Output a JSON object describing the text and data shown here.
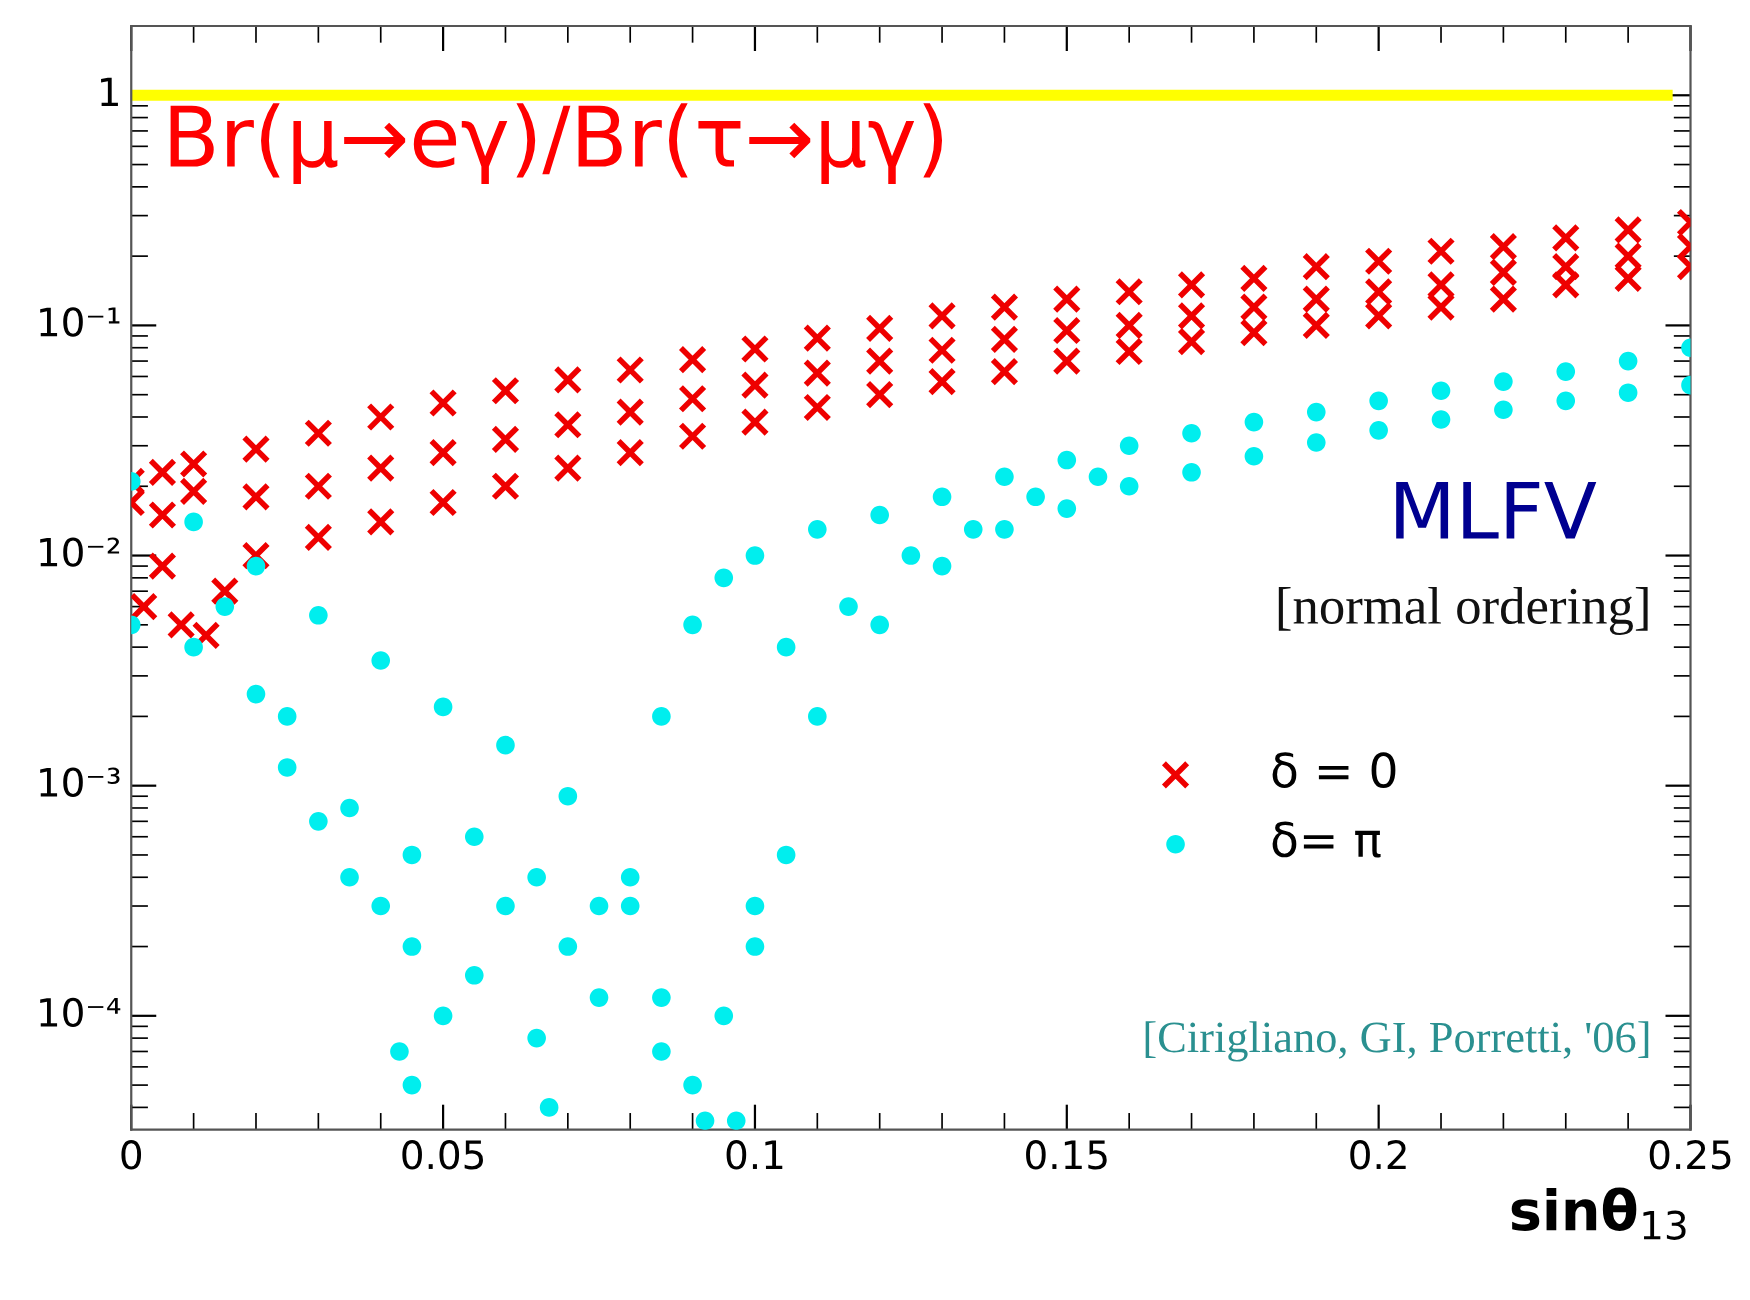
{
  "chart_data": {
    "type": "scatter",
    "xlabel": "sinθ$_{13}$",
    "xlim": [
      0,
      0.25
    ],
    "xticks": [
      0,
      0.05,
      0.1,
      0.15,
      0.2,
      0.25
    ],
    "ylim": [
      3.2e-05,
      2
    ],
    "log": "y",
    "yticks": [
      1,
      {
        "value": 0.1,
        "label": "10⁻¹"
      },
      {
        "value": 0.01,
        "label": "10⁻²"
      },
      {
        "value": 0.001,
        "label": "10⁻³"
      },
      {
        "value": 0.0001,
        "label": "10⁻⁴"
      }
    ],
    "grid": false,
    "legend": "bottom right",
    "ref_lines": [
      {
        "axis": "y",
        "value": 1,
        "color": "#ffff00"
      }
    ],
    "annotations": [
      "Br(μ→eγ)/Br(τ→μγ)",
      "MLFV",
      "[normal ordering]",
      "[Cirigliano, GI, Porretti, '06]"
    ],
    "series": [
      {
        "name": "δ = 0",
        "color": "#ee0000",
        "marker": "cross",
        "x": [
          0,
          0.005,
          0.01,
          0.02,
          0.03,
          0.04,
          0.05,
          0.06,
          0.07,
          0.08,
          0.09,
          0.1,
          0.11,
          0.12,
          0.13,
          0.14,
          0.15,
          0.16,
          0.17,
          0.18,
          0.19,
          0.2,
          0.21,
          0.22,
          0.23,
          0.24,
          0.25,
          0,
          0.005,
          0.03,
          0.04,
          0.05,
          0.06,
          0.07,
          0.08,
          0.09,
          0.1,
          0.11,
          0.12,
          0.13,
          0.14,
          0.15,
          0.16,
          0.17,
          0.18,
          0.19,
          0.2,
          0.21,
          0.22,
          0.23,
          0.24,
          0.25,
          0.01,
          0.02,
          0.03,
          0.04,
          0.05,
          0.06,
          0.07,
          0.08,
          0.09,
          0.1,
          0.11,
          0.12,
          0.13,
          0.14,
          0.15,
          0.16,
          0.17,
          0.18,
          0.19,
          0.2,
          0.21,
          0.22,
          0.23,
          0.24,
          0.25,
          0.002,
          0.005,
          0.008,
          0.012,
          0.015,
          0.02
        ],
        "values": [
          0.021,
          0.023,
          0.025,
          0.029,
          0.034,
          0.04,
          0.046,
          0.052,
          0.058,
          0.064,
          0.071,
          0.079,
          0.088,
          0.097,
          0.11,
          0.12,
          0.13,
          0.14,
          0.15,
          0.16,
          0.18,
          0.19,
          0.21,
          0.22,
          0.24,
          0.26,
          0.28,
          0.017,
          0.015,
          0.012,
          0.014,
          0.017,
          0.02,
          0.024,
          0.028,
          0.033,
          0.038,
          0.044,
          0.05,
          0.057,
          0.063,
          0.07,
          0.077,
          0.085,
          0.093,
          0.1,
          0.11,
          0.12,
          0.13,
          0.15,
          0.16,
          0.18,
          0.019,
          0.018,
          0.02,
          0.024,
          0.028,
          0.032,
          0.037,
          0.042,
          0.048,
          0.055,
          0.062,
          0.07,
          0.078,
          0.087,
          0.095,
          0.1,
          0.11,
          0.12,
          0.13,
          0.14,
          0.15,
          0.17,
          0.18,
          0.2,
          0.22,
          0.006,
          0.009,
          0.005,
          0.0045,
          0.007,
          0.01
        ]
      },
      {
        "name": "δ= π",
        "color": "#00eeee",
        "marker": "circle",
        "x": [
          0,
          0.01,
          0.02,
          0.03,
          0.04,
          0.05,
          0.06,
          0.07,
          0.08,
          0.085,
          0,
          0.01,
          0.02,
          0.025,
          0.03,
          0.035,
          0.04,
          0.045,
          0.043,
          0.045,
          0.05,
          0.055,
          0.06,
          0.065,
          0.067,
          0.07,
          0.075,
          0.08,
          0.085,
          0.09,
          0.092,
          0.095,
          0.1,
          0.085,
          0.09,
          0.095,
          0.097,
          0.1,
          0.105,
          0.11,
          0.12,
          0.13,
          0.14,
          0.15,
          0.16,
          0.17,
          0.18,
          0.19,
          0.2,
          0.21,
          0.22,
          0.23,
          0.24,
          0.25,
          0.1,
          0.11,
          0.12,
          0.13,
          0.14,
          0.15,
          0.16,
          0.17,
          0.18,
          0.19,
          0.2,
          0.21,
          0.22,
          0.23,
          0.24,
          0.25,
          0.015,
          0.025,
          0.035,
          0.045,
          0.055,
          0.065,
          0.075,
          0.105,
          0.115,
          0.125,
          0.135,
          0.145,
          0.155
        ],
        "values": [
          0.021,
          0.014,
          0.009,
          0.0055,
          0.0035,
          0.0022,
          0.0015,
          0.0009,
          0.0003,
          0.00012,
          0.005,
          0.004,
          0.0025,
          0.0012,
          0.0007,
          0.0004,
          0.0003,
          0.0002,
          7e-05,
          5e-05,
          0.0001,
          0.00015,
          0.0003,
          8e-05,
          4e-05,
          0.0002,
          0.00012,
          0.0004,
          7e-05,
          5e-05,
          3.5e-05,
          0.0001,
          0.0003,
          0.002,
          0.005,
          0.008,
          3.5e-05,
          0.0002,
          0.0005,
          0.002,
          0.005,
          0.009,
          0.013,
          0.016,
          0.02,
          0.023,
          0.027,
          0.031,
          0.035,
          0.039,
          0.043,
          0.047,
          0.051,
          0.055,
          0.01,
          0.013,
          0.015,
          0.018,
          0.022,
          0.026,
          0.03,
          0.034,
          0.038,
          0.042,
          0.047,
          0.052,
          0.057,
          0.063,
          0.07,
          0.08,
          0.006,
          0.002,
          0.0008,
          0.0005,
          0.0006,
          0.0004,
          0.0003,
          0.004,
          0.006,
          0.01,
          0.013,
          0.018,
          0.022
        ]
      }
    ]
  }
}
